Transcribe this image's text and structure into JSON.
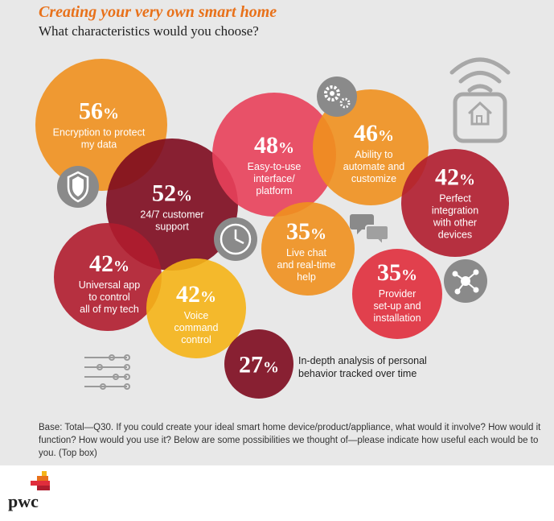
{
  "title": "Creating your very own smart home",
  "subtitle": "What characteristics would you choose?",
  "chart_data": {
    "type": "bubble",
    "unit": "%",
    "items": [
      {
        "value": 56,
        "label": "Encryption to protect\nmy data",
        "color": "#f0901e"
      },
      {
        "value": 52,
        "label": "24/7 customer\nsupport",
        "color": "#7d0a1e"
      },
      {
        "value": 48,
        "label": "Easy-to-use\ninterface/\nplatform",
        "color": "#e8405a"
      },
      {
        "value": 46,
        "label": "Ability to\nautomate and\ncustomize",
        "color": "#f0901e"
      },
      {
        "value": 42,
        "label": "Perfect\nintegration\nwith other\ndevices",
        "color": "#b01c2e"
      },
      {
        "value": 42,
        "label": "Universal app\nto control\nall of my tech",
        "color": "#b01c2e"
      },
      {
        "value": 42,
        "label": "Voice\ncommand\ncontrol",
        "color": "#f5b417"
      },
      {
        "value": 35,
        "label": "Live chat\nand real-time\nhelp",
        "color": "#f0901e"
      },
      {
        "value": 35,
        "label": "Provider\nset-up and\ninstallation",
        "color": "#e02d3c"
      },
      {
        "value": 27,
        "label": "In-depth analysis of personal\nbehavior tracked over time",
        "color": "#7d0a1e"
      }
    ]
  },
  "footnote": "Base: Total—Q30. If you could create your ideal smart home device/product/appliance, what would it involve? How would it function? How would you use it? Below are some possibilities we thought of—please indicate how useful each would be to you. (Top box)",
  "logo": {
    "text": "pwc",
    "colors": [
      "#f5b417",
      "#e8711a",
      "#e02d3c",
      "#b01c2e"
    ]
  },
  "icons": [
    "shield-icon",
    "clock-icon",
    "gears-icon",
    "chat-icon",
    "network-icon",
    "sliders-icon",
    "smart-home-icon"
  ]
}
